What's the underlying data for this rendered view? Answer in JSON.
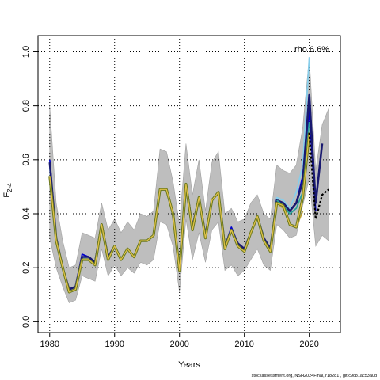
{
  "chart_data": {
    "type": "line",
    "title": "",
    "xlabel": "Years",
    "ylabel": "F",
    "ylabel_subscript": "2-4",
    "xlim": [
      1978.2,
      2024.8
    ],
    "ylim": [
      -0.04,
      1.06
    ],
    "xticks": [
      1980,
      1990,
      2000,
      2010,
      2020
    ],
    "yticks": [
      0.0,
      0.2,
      0.4,
      0.6,
      0.8,
      1.0
    ],
    "ytick_labels": [
      "0.0",
      "0.2",
      "0.4",
      "0.6",
      "0.8",
      "1.0"
    ],
    "grid": true,
    "annotation": "rho 6.6%",
    "colors": {
      "band": "#bebebe",
      "band_edge": "#a0a0a0",
      "main_line": "#6b7a1e",
      "main_highlight": "#e3c24a",
      "peel1": "#87ceeb",
      "peel2": "#191970",
      "peel3": "#0000cd",
      "peel4": "#2aa198",
      "peel5": "#b8a033",
      "forecast": "#000000",
      "grid": "#000000"
    },
    "confidence_band": {
      "x": [
        1980,
        1981,
        1982,
        1983,
        1984,
        1985,
        1986,
        1987,
        1988,
        1989,
        1990,
        1991,
        1992,
        1993,
        1994,
        1995,
        1996,
        1997,
        1998,
        1999,
        2000,
        2001,
        2002,
        2003,
        2004,
        2005,
        2006,
        2007,
        2008,
        2009,
        2010,
        2011,
        2012,
        2013,
        2014,
        2015,
        2016,
        2017,
        2018,
        2019,
        2020,
        2021,
        2022,
        2023
      ],
      "upper": [
        0.8,
        0.44,
        0.3,
        0.2,
        0.21,
        0.33,
        0.32,
        0.31,
        0.44,
        0.34,
        0.38,
        0.33,
        0.37,
        0.34,
        0.4,
        0.39,
        0.41,
        0.64,
        0.63,
        0.52,
        0.36,
        0.66,
        0.47,
        0.6,
        0.41,
        0.59,
        0.63,
        0.4,
        0.42,
        0.37,
        0.38,
        0.44,
        0.47,
        0.4,
        0.38,
        0.58,
        0.56,
        0.55,
        0.58,
        0.72,
        0.98,
        0.56,
        0.73,
        0.79
      ],
      "lower": [
        0.31,
        0.2,
        0.13,
        0.07,
        0.08,
        0.17,
        0.16,
        0.15,
        0.27,
        0.17,
        0.21,
        0.17,
        0.2,
        0.18,
        0.22,
        0.21,
        0.23,
        0.37,
        0.36,
        0.28,
        0.11,
        0.38,
        0.23,
        0.33,
        0.22,
        0.34,
        0.37,
        0.19,
        0.21,
        0.17,
        0.19,
        0.23,
        0.27,
        0.21,
        0.19,
        0.36,
        0.34,
        0.31,
        0.32,
        0.43,
        0.53,
        0.28,
        0.32,
        0.3
      ]
    },
    "series": [
      {
        "x": [
          1980,
          1981,
          1982,
          1983,
          1984,
          1985,
          1986,
          1987,
          1988,
          1989,
          1990,
          1991,
          1992,
          1993,
          1994,
          1995,
          1996,
          1997,
          1998,
          1999,
          2000,
          2001,
          2002,
          2003,
          2004,
          2005,
          2006,
          2007,
          2008,
          2009,
          2010,
          2011,
          2012,
          2013,
          2014,
          2015,
          2016,
          2017,
          2018,
          2019,
          2020
        ],
        "y": [
          0.54,
          0.3,
          0.2,
          0.11,
          0.12,
          0.23,
          0.23,
          0.21,
          0.36,
          0.23,
          0.28,
          0.23,
          0.27,
          0.24,
          0.3,
          0.3,
          0.32,
          0.49,
          0.49,
          0.4,
          0.19,
          0.51,
          0.34,
          0.46,
          0.31,
          0.45,
          0.48,
          0.27,
          0.34,
          0.28,
          0.26,
          0.33,
          0.39,
          0.3,
          0.26,
          0.44,
          0.43,
          0.36,
          0.35,
          0.46,
          0.7
        ],
        "color_key": "main_line"
      },
      {
        "x": [
          1980,
          1981,
          1982,
          1983,
          1984,
          1985,
          1986,
          1987,
          1988,
          1989,
          1990,
          1991,
          1992,
          1993,
          1994,
          1995,
          1996,
          1997,
          1998,
          1999,
          2000,
          2001,
          2002,
          2003,
          2004,
          2005,
          2006,
          2007,
          2008,
          2009,
          2010,
          2011,
          2012,
          2013,
          2014,
          2015,
          2016,
          2017,
          2018,
          2019,
          2020
        ],
        "y": [
          0.57,
          0.31,
          0.2,
          0.12,
          0.13,
          0.24,
          0.23,
          0.21,
          0.36,
          0.24,
          0.28,
          0.23,
          0.27,
          0.24,
          0.3,
          0.3,
          0.32,
          0.49,
          0.49,
          0.4,
          0.19,
          0.51,
          0.35,
          0.46,
          0.32,
          0.45,
          0.48,
          0.28,
          0.34,
          0.29,
          0.27,
          0.33,
          0.39,
          0.31,
          0.27,
          0.46,
          0.45,
          0.42,
          0.48,
          0.58,
          0.98
        ],
        "color_key": "peel1"
      },
      {
        "x": [
          1980,
          1981,
          1982,
          1983,
          1984,
          1985,
          1986,
          1987,
          1988,
          1989,
          1990,
          1991,
          1992,
          1993,
          1994,
          1995,
          1996,
          1997,
          1998,
          1999,
          2000,
          2001,
          2002,
          2003,
          2004,
          2005,
          2006,
          2007,
          2008,
          2009,
          2010,
          2011,
          2012,
          2013,
          2014,
          2015,
          2016,
          2017,
          2018,
          2019,
          2020,
          2021,
          2022
        ],
        "y": [
          0.59,
          0.31,
          0.2,
          0.12,
          0.13,
          0.24,
          0.24,
          0.22,
          0.36,
          0.24,
          0.28,
          0.23,
          0.27,
          0.24,
          0.3,
          0.3,
          0.32,
          0.49,
          0.49,
          0.4,
          0.19,
          0.51,
          0.35,
          0.46,
          0.32,
          0.45,
          0.48,
          0.28,
          0.34,
          0.29,
          0.27,
          0.33,
          0.39,
          0.31,
          0.27,
          0.45,
          0.44,
          0.41,
          0.44,
          0.52,
          0.84,
          0.44,
          0.66
        ],
        "color_key": "peel2"
      },
      {
        "x": [
          1980,
          1981,
          1982,
          1983,
          1984,
          1985,
          1986,
          1987,
          1988,
          1989,
          1990,
          1991,
          1992,
          1993,
          1994,
          1995,
          1996,
          1997,
          1998,
          1999,
          2000,
          2001,
          2002,
          2003,
          2004,
          2005,
          2006,
          2007,
          2008,
          2009,
          2010,
          2011,
          2012,
          2013,
          2014,
          2015,
          2016,
          2017,
          2018,
          2019,
          2020,
          2021
        ],
        "y": [
          0.6,
          0.31,
          0.2,
          0.12,
          0.13,
          0.25,
          0.24,
          0.22,
          0.36,
          0.24,
          0.28,
          0.23,
          0.27,
          0.24,
          0.3,
          0.3,
          0.32,
          0.49,
          0.49,
          0.4,
          0.19,
          0.51,
          0.35,
          0.46,
          0.32,
          0.45,
          0.48,
          0.28,
          0.35,
          0.29,
          0.27,
          0.33,
          0.39,
          0.31,
          0.27,
          0.45,
          0.44,
          0.41,
          0.44,
          0.54,
          0.78,
          0.41
        ],
        "color_key": "peel3"
      },
      {
        "x": [
          2015,
          2016,
          2017,
          2018,
          2019,
          2020
        ],
        "y": [
          0.45,
          0.43,
          0.4,
          0.42,
          0.48,
          0.74
        ],
        "color_key": "peel4"
      },
      {
        "x": [
          2015,
          2016,
          2017,
          2018,
          2019
        ],
        "y": [
          0.44,
          0.42,
          0.36,
          0.35,
          0.41
        ],
        "color_key": "peel5"
      },
      {
        "x": [
          2020,
          2021,
          2022,
          2023
        ],
        "y": [
          0.7,
          0.38,
          0.47,
          0.49
        ],
        "color_key": "forecast",
        "dashed": true
      }
    ]
  },
  "footer_text": "stockassessment.org, NSH2024Final, r18281 , git:c9c81ac53a0d"
}
